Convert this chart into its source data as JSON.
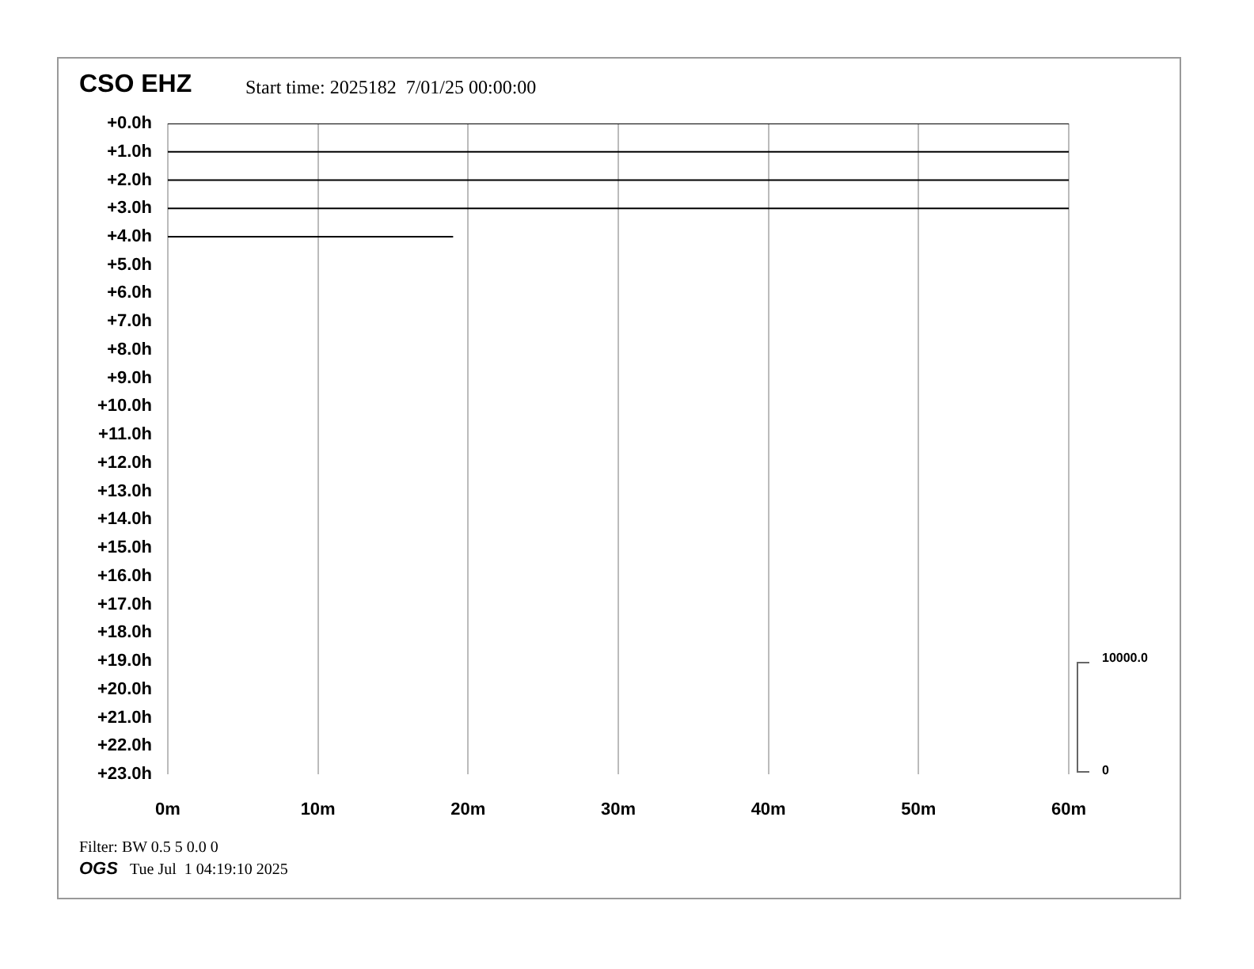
{
  "chart_data": {
    "type": "line",
    "title": "CSO EHZ",
    "subtitle": "Start time: 2025182  7/01/25 00:00:00",
    "series": [
      {
        "color": "#000000",
        "x": [
          0,
          60
        ],
        "values": [
          0,
          0
        ]
      },
      {
        "color": "#000000",
        "x": [
          0,
          60
        ],
        "values": [
          1,
          1
        ]
      },
      {
        "color": "#000000",
        "x": [
          0,
          60
        ],
        "values": [
          2,
          2
        ]
      },
      {
        "color": "#000000",
        "x": [
          0,
          60
        ],
        "values": [
          3,
          3
        ]
      },
      {
        "color": "#000000",
        "x": [
          0,
          19
        ],
        "values": [
          4,
          4
        ]
      }
    ],
    "xlim": [
      0,
      60
    ],
    "xticks": [
      {
        "value": 0,
        "label": "0m"
      },
      {
        "value": 10,
        "label": "10m"
      },
      {
        "value": 20,
        "label": "20m"
      },
      {
        "value": 30,
        "label": "30m"
      },
      {
        "value": 40,
        "label": "40m"
      },
      {
        "value": 50,
        "label": "50m"
      },
      {
        "value": 60,
        "label": "60m"
      }
    ],
    "ylim": [
      23,
      0
    ],
    "yticks": [
      {
        "value": 0,
        "label": "+0.0h"
      },
      {
        "value": 1,
        "label": "+1.0h"
      },
      {
        "value": 2,
        "label": "+2.0h"
      },
      {
        "value": 3,
        "label": "+3.0h"
      },
      {
        "value": 4,
        "label": "+4.0h"
      },
      {
        "value": 5,
        "label": "+5.0h"
      },
      {
        "value": 6,
        "label": "+6.0h"
      },
      {
        "value": 7,
        "label": "+7.0h"
      },
      {
        "value": 8,
        "label": "+8.0h"
      },
      {
        "value": 9,
        "label": "+9.0h"
      },
      {
        "value": 10,
        "label": "+10.0h"
      },
      {
        "value": 11,
        "label": "+11.0h"
      },
      {
        "value": 12,
        "label": "+12.0h"
      },
      {
        "value": 13,
        "label": "+13.0h"
      },
      {
        "value": 14,
        "label": "+14.0h"
      },
      {
        "value": 15,
        "label": "+15.0h"
      },
      {
        "value": 16,
        "label": "+16.0h"
      },
      {
        "value": 17,
        "label": "+17.0h"
      },
      {
        "value": 18,
        "label": "+18.0h"
      },
      {
        "value": 19,
        "label": "+19.0h"
      },
      {
        "value": 20,
        "label": "+20.0h"
      },
      {
        "value": 21,
        "label": "+21.0h"
      },
      {
        "value": 22,
        "label": "+22.0h"
      },
      {
        "value": 23,
        "label": "+23.0h"
      }
    ],
    "grid": "x",
    "legend": false,
    "marker": "none",
    "line_style": "solid",
    "annotations": [
      "Filter: BW 0.5 5 0.0 0",
      "OGS",
      "Tue Jul  1 04:19:10 2025",
      "10000.0",
      "0"
    ]
  }
}
